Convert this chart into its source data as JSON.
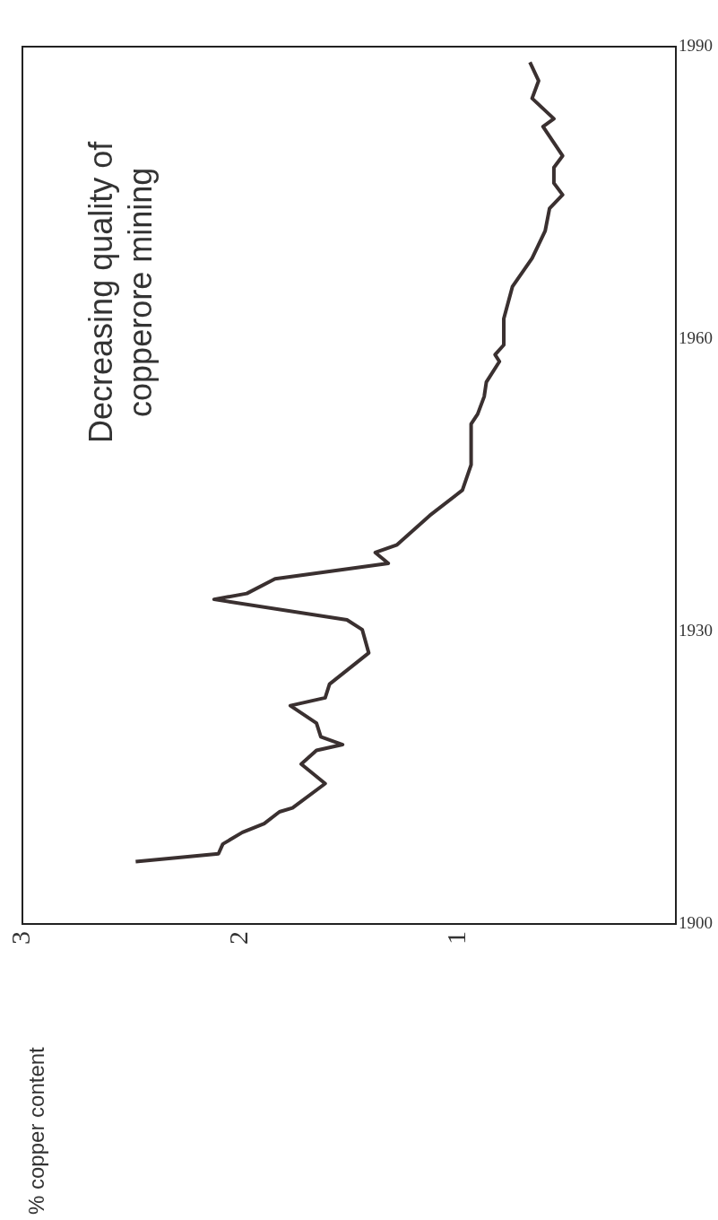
{
  "chart_data": {
    "type": "line",
    "annotations": [
      "Decreasing quality of\ncopperore mining",
      "% copper content"
    ],
    "x": [
      2.48,
      2.1,
      2.08,
      1.99,
      1.89,
      1.82,
      1.76,
      1.61,
      1.72,
      1.65,
      1.53,
      1.63,
      1.65,
      1.77,
      1.61,
      1.59,
      1.41,
      1.44,
      1.51,
      2.12,
      1.97,
      1.84,
      1.32,
      1.38,
      1.28,
      1.13,
      0.98,
      0.94,
      0.94,
      0.91,
      0.88,
      0.87,
      0.81,
      0.83,
      0.79,
      0.79,
      0.75,
      0.66,
      0.6,
      0.58,
      0.52,
      0.56,
      0.56,
      0.52,
      0.61,
      0.56,
      0.66,
      0.63,
      0.67
    ],
    "series": [
      {
        "color": "#3a3030",
        "values": [
          1906.4,
          1907.2,
          1908.2,
          1909.4,
          1910.3,
          1911.5,
          1911.9,
          1914.4,
          1916.4,
          1917.8,
          1918.4,
          1919.2,
          1920.6,
          1922.4,
          1923.2,
          1924.6,
          1927.8,
          1930.2,
          1931.2,
          1933.3,
          1933.9,
          1935.4,
          1937.0,
          1938.1,
          1938.9,
          1941.9,
          1944.5,
          1947.1,
          1951.3,
          1952.3,
          1954.1,
          1955.6,
          1957.7,
          1958.4,
          1959.4,
          1962.1,
          1965.4,
          1968.3,
          1971.1,
          1973.4,
          1974.8,
          1976.0,
          1977.6,
          1978.8,
          1981.8,
          1982.6,
          1984.7,
          1986.5,
          1988.4
        ]
      }
    ],
    "xlim": [
      3,
      0
    ],
    "xticks": [
      3,
      2,
      1
    ],
    "ylim": [
      1900,
      1990
    ],
    "yticks": [
      1900,
      1930,
      1960,
      1990
    ]
  }
}
